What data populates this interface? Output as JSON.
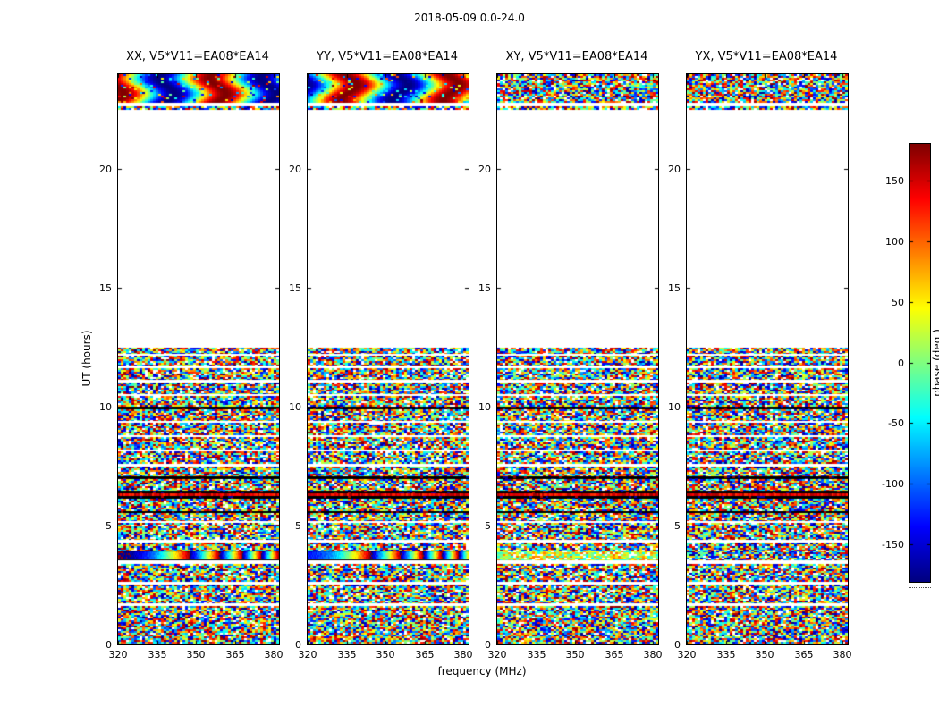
{
  "chart_data": {
    "type": "heatmap",
    "title": "2018-05-09 0.0-24.0",
    "xlabel": "frequency (MHz)",
    "ylabel": "UT (hours)",
    "x_ticks": [
      "320",
      "335",
      "350",
      "365",
      "380"
    ],
    "x_tick_values": [
      320,
      335,
      350,
      365,
      380
    ],
    "x_range": [
      320,
      382
    ],
    "y_ticks": [
      "0",
      "5",
      "10",
      "15",
      "20"
    ],
    "y_tick_values": [
      0,
      5,
      10,
      15,
      20
    ],
    "y_range": [
      0,
      24
    ],
    "panels": [
      {
        "id": "XX",
        "title": "XX, V5*V11=EA08*EA14"
      },
      {
        "id": "YY",
        "title": "YY, V5*V11=EA08*EA14"
      },
      {
        "id": "XY",
        "title": "XY, V5*V11=EA08*EA14"
      },
      {
        "id": "YX",
        "title": "YX, V5*V11=EA08*EA14"
      }
    ],
    "colorbar": {
      "label": "phase (deg.)",
      "ticks": [
        "150",
        "100",
        "50",
        "0",
        "-50",
        "-100",
        "-150"
      ],
      "tick_values": [
        150,
        100,
        50,
        0,
        -50,
        -100,
        -150
      ],
      "vmin": -180,
      "vmax": 180,
      "colormap": "jet"
    },
    "time_bands": [
      {
        "ut0": 0.0,
        "ut1": 1.62,
        "style": "noise"
      },
      {
        "ut0": 1.74,
        "ut1": 2.52,
        "style": "noise"
      },
      {
        "ut0": 2.62,
        "ut1": 3.4,
        "style": "noise"
      },
      {
        "ut0": 3.52,
        "ut1": 3.94,
        "style": "sweep",
        "styles_by_pol": {
          "XY": "tinted",
          "YX": "noise"
        }
      },
      {
        "ut0": 3.94,
        "ut1": 4.28,
        "style": "noise"
      },
      {
        "ut0": 4.4,
        "ut1": 5.1,
        "style": "noise"
      },
      {
        "ut0": 5.2,
        "ut1": 5.52,
        "style": "noise"
      },
      {
        "ut0": 5.52,
        "ut1": 5.62,
        "style": "dark"
      },
      {
        "ut0": 5.62,
        "ut1": 6.14,
        "style": "noise"
      },
      {
        "ut0": 6.14,
        "ut1": 6.46,
        "style": "dark_red"
      },
      {
        "ut0": 6.46,
        "ut1": 6.96,
        "style": "noise"
      },
      {
        "ut0": 6.96,
        "ut1": 7.06,
        "style": "dark"
      },
      {
        "ut0": 7.06,
        "ut1": 7.5,
        "style": "noise"
      },
      {
        "ut0": 7.6,
        "ut1": 8.12,
        "style": "noise"
      },
      {
        "ut0": 8.2,
        "ut1": 8.72,
        "style": "noise"
      },
      {
        "ut0": 8.8,
        "ut1": 9.32,
        "style": "noise"
      },
      {
        "ut0": 9.4,
        "ut1": 9.9,
        "style": "noise"
      },
      {
        "ut0": 9.9,
        "ut1": 10.0,
        "style": "dark"
      },
      {
        "ut0": 10.0,
        "ut1": 10.44,
        "style": "noise"
      },
      {
        "ut0": 10.54,
        "ut1": 11.04,
        "style": "noise"
      },
      {
        "ut0": 11.14,
        "ut1": 11.62,
        "style": "noise"
      },
      {
        "ut0": 11.72,
        "ut1": 12.16,
        "style": "noise"
      },
      {
        "ut0": 12.22,
        "ut1": 12.5,
        "style": "noise"
      },
      {
        "ut0": 22.5,
        "ut1": 22.66,
        "style": "noise"
      },
      {
        "ut0": 22.78,
        "ut1": 24.0,
        "style": "smooth",
        "styles_by_pol": {
          "XY": "noise",
          "YX": "noise"
        }
      }
    ]
  }
}
